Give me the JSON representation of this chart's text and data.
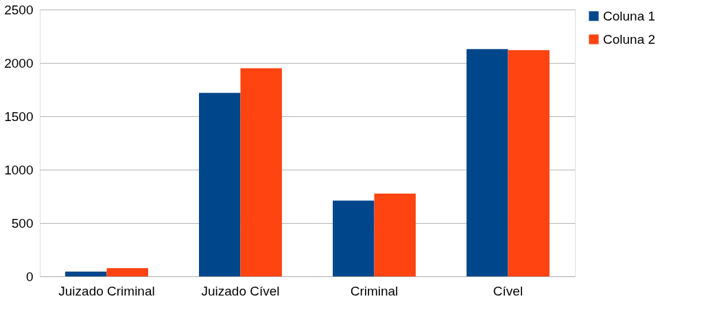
{
  "chart_data": {
    "type": "bar",
    "categories": [
      "Juizado Criminal",
      "Juizado Cível",
      "Criminal",
      "Cível"
    ],
    "series": [
      {
        "name": "Coluna 1",
        "color": "#00468b",
        "values": [
          45,
          1720,
          710,
          2130
        ]
      },
      {
        "name": "Coluna 2",
        "color": "#ff4411",
        "values": [
          77,
          1950,
          775,
          2120
        ]
      }
    ],
    "ylim": [
      0,
      2500
    ],
    "yticks": [
      0,
      500,
      1000,
      1500,
      2000,
      2500
    ],
    "grid": "y",
    "legend": "right"
  }
}
